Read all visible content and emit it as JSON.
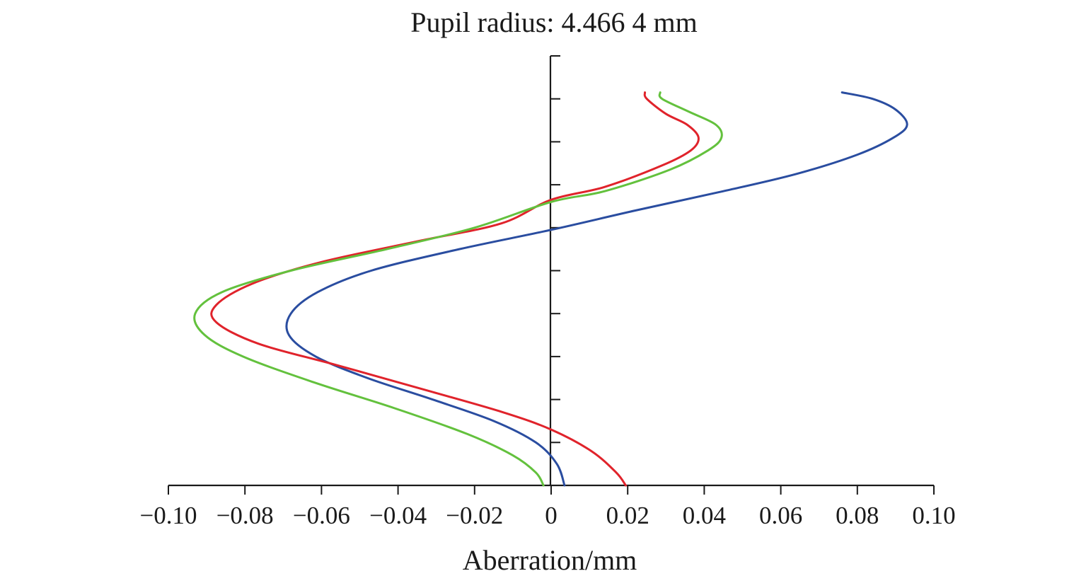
{
  "chart_data": {
    "type": "line",
    "title": "Pupil radius: 4.466 4 mm",
    "xlabel": "Aberration/mm",
    "ylabel": "",
    "xlim": [
      -0.1,
      0.1
    ],
    "ylim": [
      0,
      1
    ],
    "x_ticks": [
      -0.1,
      -0.08,
      -0.06,
      -0.04,
      -0.02,
      0,
      0.02,
      0.04,
      0.06,
      0.08,
      0.1
    ],
    "x_tick_labels": [
      "−0.10",
      "−0.08",
      "−0.06",
      "−0.04",
      "−0.02",
      "0",
      "0.02",
      "0.04",
      "0.06",
      "0.08",
      "0.10"
    ],
    "y_ticks": [
      0.1,
      0.2,
      0.3,
      0.4,
      0.5,
      0.6,
      0.7,
      0.8,
      0.9,
      1.0
    ],
    "grid": false,
    "series": [
      {
        "color": "#2a4da0",
        "points": [
          [
            0.0035,
            0.0
          ],
          [
            0.0015,
            0.05
          ],
          [
            -0.004,
            0.1
          ],
          [
            -0.015,
            0.15
          ],
          [
            -0.031,
            0.2
          ],
          [
            -0.048,
            0.25
          ],
          [
            -0.0615,
            0.3
          ],
          [
            -0.0685,
            0.35
          ],
          [
            -0.068,
            0.4
          ],
          [
            -0.061,
            0.45
          ],
          [
            -0.047,
            0.5
          ],
          [
            -0.024,
            0.55
          ],
          [
            0.0,
            0.595
          ],
          [
            0.022,
            0.64
          ],
          [
            0.045,
            0.685
          ],
          [
            0.064,
            0.725
          ],
          [
            0.08,
            0.77
          ],
          [
            0.0895,
            0.81
          ],
          [
            0.093,
            0.84
          ],
          [
            0.09,
            0.875
          ],
          [
            0.084,
            0.9
          ],
          [
            0.076,
            0.915
          ]
        ]
      },
      {
        "color": "#e0232b",
        "points": [
          [
            0.0195,
            0.0
          ],
          [
            0.017,
            0.03
          ],
          [
            0.0105,
            0.08
          ],
          [
            0.0,
            0.13
          ],
          [
            -0.0125,
            0.17
          ],
          [
            -0.032,
            0.22
          ],
          [
            -0.056,
            0.28
          ],
          [
            -0.0765,
            0.33
          ],
          [
            -0.0875,
            0.38
          ],
          [
            -0.0875,
            0.42
          ],
          [
            -0.078,
            0.47
          ],
          [
            -0.06,
            0.52
          ],
          [
            -0.034,
            0.57
          ],
          [
            -0.013,
            0.61
          ],
          [
            0.0,
            0.665
          ],
          [
            0.014,
            0.695
          ],
          [
            0.029,
            0.745
          ],
          [
            0.0365,
            0.78
          ],
          [
            0.0385,
            0.81
          ],
          [
            0.0355,
            0.84
          ],
          [
            0.03,
            0.865
          ],
          [
            0.025,
            0.9
          ],
          [
            0.0245,
            0.915
          ]
        ]
      },
      {
        "color": "#63c13d",
        "points": [
          [
            -0.002,
            0.0
          ],
          [
            -0.004,
            0.03
          ],
          [
            -0.01,
            0.07
          ],
          [
            -0.022,
            0.12
          ],
          [
            -0.041,
            0.18
          ],
          [
            -0.062,
            0.24
          ],
          [
            -0.0805,
            0.3
          ],
          [
            -0.0905,
            0.35
          ],
          [
            -0.093,
            0.4
          ],
          [
            -0.086,
            0.45
          ],
          [
            -0.068,
            0.5
          ],
          [
            -0.043,
            0.55
          ],
          [
            -0.02,
            0.6
          ],
          [
            0.0,
            0.66
          ],
          [
            0.014,
            0.685
          ],
          [
            0.031,
            0.735
          ],
          [
            0.041,
            0.78
          ],
          [
            0.0445,
            0.81
          ],
          [
            0.043,
            0.84
          ],
          [
            0.036,
            0.87
          ],
          [
            0.029,
            0.9
          ],
          [
            0.0285,
            0.915
          ]
        ]
      }
    ]
  }
}
